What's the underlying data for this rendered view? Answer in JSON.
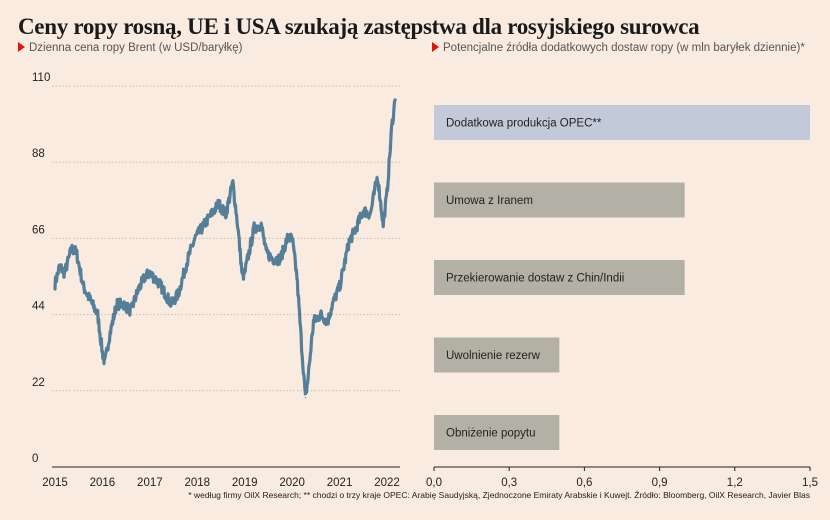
{
  "title": "Ceny ropy rosną, UE i USA szukają zastępstwa dla rosyjskiego surowca",
  "left_subtitle": "Dzienna cena ropy Brent (w USD/baryłkę)",
  "right_subtitle": "Potencjalne źródła dodatkowych dostaw ropy (w mln baryłek dziennie)*",
  "footnote": "* według firmy OilX Research; ** chodzi o trzy kraje OPEC: Arabię Saudyjską, Zjednoczone Emiraty Arabskie i Kuwejt. Źródło: Bloomberg, OilX Research, Javier Blas",
  "colors": {
    "background": "#f9ebe0",
    "line": "#557f98",
    "bar_highlight": "#c2c9d8",
    "bar": "#b3b1a5",
    "accent": "#e3120b"
  },
  "chart_data": [
    {
      "type": "line",
      "title": "Dzienna cena ropy Brent (w USD/baryłkę)",
      "ylim": [
        0,
        110
      ],
      "y_ticks": [
        "0",
        "22",
        "44",
        "66",
        "88",
        "110"
      ],
      "x_ticks": [
        "2015",
        "2016",
        "2017",
        "2018",
        "2019",
        "2020",
        "2021",
        "2022"
      ],
      "series": [
        {
          "x": [
            2015.0,
            2015.1,
            2015.2,
            2015.35,
            2015.45,
            2015.6,
            2015.75,
            2015.9,
            2016.0,
            2016.05,
            2016.15,
            2016.3,
            2016.45,
            2016.6,
            2016.75,
            2016.9,
            2017.0,
            2017.2,
            2017.45,
            2017.6,
            2017.8,
            2017.95,
            2018.15,
            2018.3,
            2018.45,
            2018.6,
            2018.75,
            2018.85,
            2018.95,
            2019.0,
            2019.2,
            2019.35,
            2019.45,
            2019.6,
            2019.75,
            2019.9,
            2020.0,
            2020.1,
            2020.2,
            2020.28,
            2020.33,
            2020.45,
            2020.6,
            2020.75,
            2020.85,
            2021.0,
            2021.2,
            2021.35,
            2021.5,
            2021.65,
            2021.8,
            2021.92,
            2022.0,
            2022.1,
            2022.17
          ],
          "values": [
            53,
            58,
            56,
            63,
            62,
            52,
            48,
            44,
            33,
            30,
            38,
            47,
            47,
            45,
            51,
            55,
            56,
            53,
            47,
            50,
            60,
            66,
            70,
            73,
            76,
            73,
            82,
            70,
            55,
            56,
            69,
            70,
            62,
            60,
            60,
            66,
            66,
            55,
            35,
            20,
            25,
            42,
            44,
            42,
            47,
            52,
            65,
            69,
            74,
            73,
            84,
            70,
            79,
            98,
            106
          ]
        }
      ]
    },
    {
      "type": "bar",
      "orientation": "horizontal",
      "title": "Potencjalne źródła dodatkowych dostaw ropy (w mln baryłek dziennie)*",
      "xlim": [
        0,
        1.5
      ],
      "x_ticks": [
        "0,0",
        "0,3",
        "0,6",
        "0,9",
        "1,2",
        "1,5"
      ],
      "categories": [
        "Dodatkowa produkcja OPEC**",
        "Umowa z Iranem",
        "Przekierowanie dostaw z Chin/Indii",
        "Uwolnienie rezerw",
        "Obniżenie popytu"
      ],
      "values": [
        1.5,
        1.0,
        1.0,
        0.5,
        0.5
      ]
    }
  ]
}
